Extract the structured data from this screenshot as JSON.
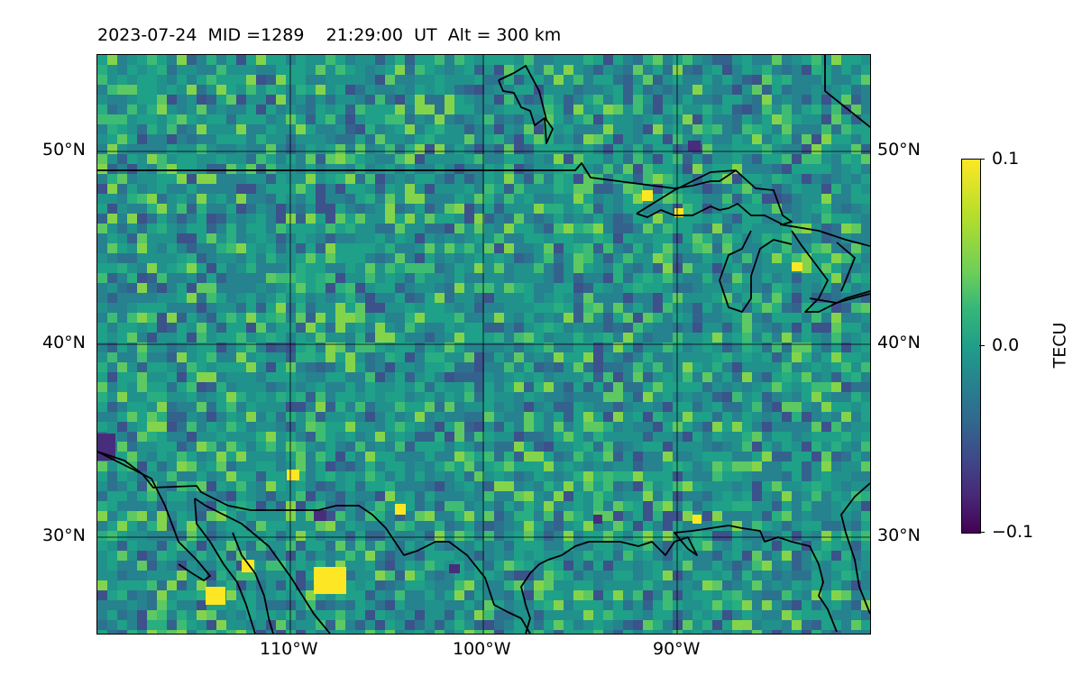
{
  "title": {
    "date": "2023-07-24",
    "mid": "MID =1289",
    "time": "21:29:00",
    "ut": "UT",
    "alt": "Alt = 300 km"
  },
  "axes": {
    "lat_labels": [
      "50°N",
      "40°N",
      "30°N"
    ],
    "lon_labels": [
      "110°W",
      "100°W",
      "90°W"
    ],
    "lat_range": [
      25,
      55
    ],
    "lon_range": [
      -120,
      -80
    ]
  },
  "colorbar": {
    "label": "TECU",
    "ticks": [
      "0.1",
      "0.0",
      "−0.1"
    ],
    "vmin": -0.1,
    "vmax": 0.1,
    "colormap": "viridis"
  },
  "colors": {
    "background_field": "#2a7f8e",
    "coastline": "#000000",
    "grid": "#000000"
  }
}
